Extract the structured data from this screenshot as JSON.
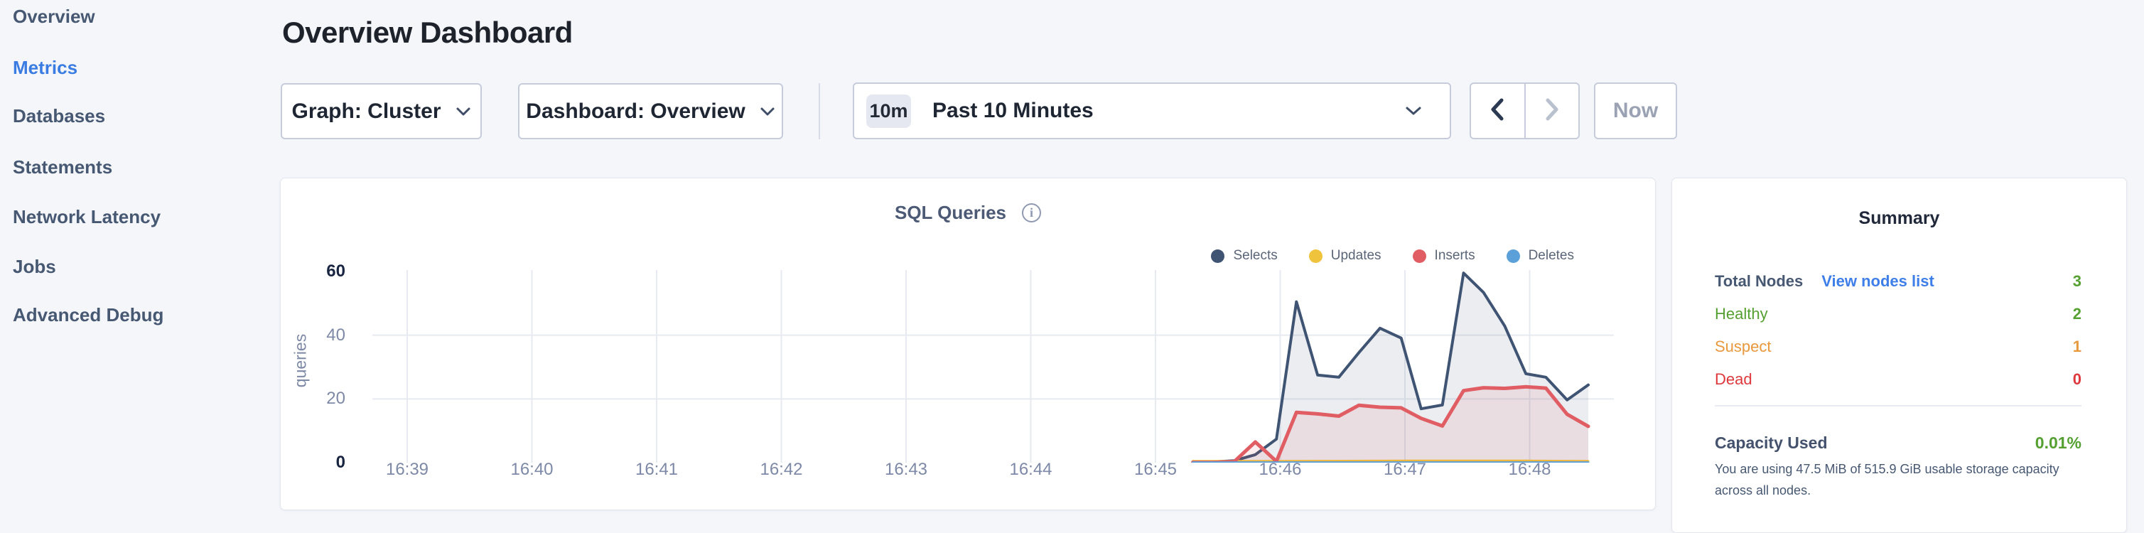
{
  "colors": {
    "green": "#55a031",
    "orange": "#e9993d",
    "red": "#de383d",
    "link_blue": "#3e7ee8",
    "active_nav": "#3a7ce1",
    "selects": "#3f5373",
    "updates": "#f0c33d",
    "inserts": "#e05d64",
    "deletes": "#5ba0d9"
  },
  "sidebar": {
    "items": [
      {
        "label": "Overview",
        "active": false
      },
      {
        "label": "Metrics",
        "active": true
      },
      {
        "label": "Databases",
        "active": false
      },
      {
        "label": "Statements",
        "active": false
      },
      {
        "label": "Network Latency",
        "active": false
      },
      {
        "label": "Jobs",
        "active": false
      },
      {
        "label": "Advanced Debug",
        "active": false
      }
    ]
  },
  "header": {
    "title": "Overview Dashboard"
  },
  "toolbar": {
    "graph_dropdown": "Graph: Cluster",
    "dashboard_dropdown": "Dashboard: Overview",
    "time_selector": {
      "badge": "10m",
      "label": "Past 10 Minutes"
    },
    "prev_icon": "chevron-left",
    "next_icon": "chevron-right",
    "now_label": "Now"
  },
  "chart_data": {
    "type": "area",
    "title": "SQL Queries",
    "ylabel": "queries",
    "xlabel": "",
    "x_ticks": [
      "16:39",
      "16:40",
      "16:41",
      "16:42",
      "16:43",
      "16:44",
      "16:45",
      "16:46",
      "16:47",
      "16:48"
    ],
    "y_ticks": [
      0,
      20,
      40,
      60
    ],
    "ylim": [
      0,
      60
    ],
    "grid": {
      "horizontal_at": [
        20,
        40
      ],
      "vertical_at_every_minute": true
    },
    "legend_position": "top-right",
    "x_unit": "minutes after 16:39",
    "series": [
      {
        "name": "Selects",
        "color": "#3f5373",
        "fill": "rgba(71,88,114,0.11)",
        "width": 4,
        "points": [
          [
            6.3,
            0.3
          ],
          [
            6.47,
            0.3
          ],
          [
            6.63,
            0.6
          ],
          [
            6.8,
            2.5
          ],
          [
            6.97,
            7.4
          ],
          [
            7.13,
            50.5
          ],
          [
            7.3,
            27.5
          ],
          [
            7.47,
            26.8
          ],
          [
            7.63,
            34.5
          ],
          [
            7.8,
            42.2
          ],
          [
            7.97,
            39.1
          ],
          [
            8.13,
            16.9
          ],
          [
            8.3,
            18.1
          ],
          [
            8.47,
            59.5
          ],
          [
            8.63,
            53.4
          ],
          [
            8.8,
            42.9
          ],
          [
            8.97,
            27.9
          ],
          [
            9.13,
            26.8
          ],
          [
            9.3,
            19.7
          ],
          [
            9.47,
            24.4
          ]
        ]
      },
      {
        "name": "Updates",
        "color": "#f0c33d",
        "fill": "none",
        "width": 3,
        "points": [
          [
            6.3,
            0.5
          ],
          [
            7.0,
            0.5
          ],
          [
            8.0,
            0.6
          ],
          [
            9.0,
            0.6
          ],
          [
            9.47,
            0.5
          ]
        ]
      },
      {
        "name": "Inserts",
        "color": "#e05d64",
        "fill": "rgba(224,93,100,0.10)",
        "width": 5,
        "points": [
          [
            6.3,
            0.1
          ],
          [
            6.47,
            0.1
          ],
          [
            6.63,
            0.3
          ],
          [
            6.8,
            6.5
          ],
          [
            6.97,
            0.4
          ],
          [
            7.13,
            15.8
          ],
          [
            7.3,
            15.3
          ],
          [
            7.47,
            14.6
          ],
          [
            7.63,
            18.0
          ],
          [
            7.8,
            17.4
          ],
          [
            7.97,
            17.2
          ],
          [
            8.13,
            13.9
          ],
          [
            8.3,
            11.5
          ],
          [
            8.47,
            22.6
          ],
          [
            8.63,
            23.5
          ],
          [
            8.8,
            23.3
          ],
          [
            8.97,
            23.8
          ],
          [
            9.13,
            23.4
          ],
          [
            9.3,
            15.2
          ],
          [
            9.47,
            11.4
          ]
        ]
      },
      {
        "name": "Deletes",
        "color": "#5ba0d9",
        "fill": "none",
        "width": 3,
        "points": [
          [
            6.3,
            0.1
          ],
          [
            9.47,
            0.1
          ]
        ]
      }
    ]
  },
  "summary": {
    "title": "Summary",
    "rows": [
      {
        "label": "Total Nodes",
        "link": "View nodes list",
        "value": "3",
        "color": "green"
      },
      {
        "label": "Healthy",
        "value": "2",
        "color": "green"
      },
      {
        "label": "Suspect",
        "value": "1",
        "color": "orange"
      },
      {
        "label": "Dead",
        "value": "0",
        "color": "red"
      }
    ],
    "capacity": {
      "label": "Capacity Used",
      "value": "0.01%",
      "value_color": "green",
      "description": "You are using 47.5 MiB of 515.9 GiB usable storage capacity across all nodes."
    }
  }
}
